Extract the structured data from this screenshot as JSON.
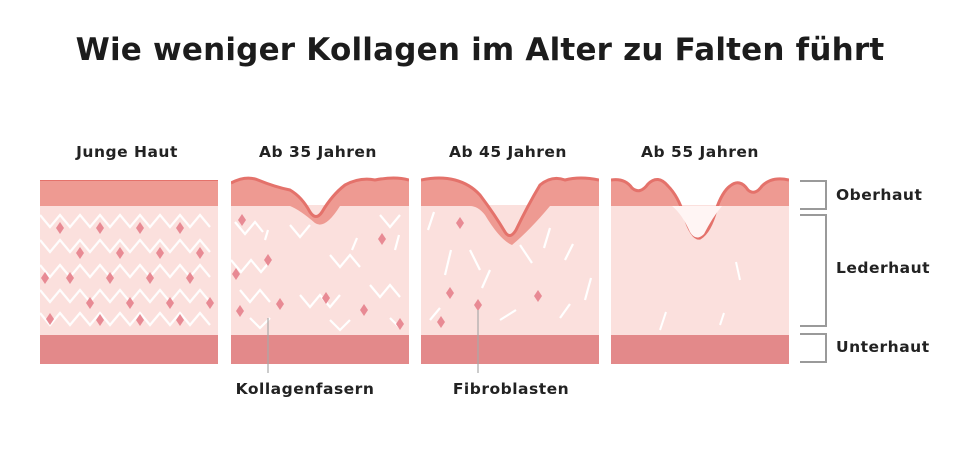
{
  "title": "Wie weniger Kollagen im Alter zu Falten führt",
  "stages": [
    {
      "label": "Junge Haut"
    },
    {
      "label": "Ab 35 Jahren"
    },
    {
      "label": "Ab 45 Jahren"
    },
    {
      "label": "Ab 55 Jahren"
    }
  ],
  "layers": {
    "epidermis": "Oberhaut",
    "dermis": "Lederhaut",
    "subcutis": "Unterhaut"
  },
  "callouts": {
    "collagen": "Kollagenfasern",
    "fibroblasts": "Fibroblasten"
  },
  "colors": {
    "epidermis": "#ee9a92",
    "epidermis_edge": "#e4726b",
    "dermis": "#fbe0dd",
    "subcutis": "#e3898a",
    "fiber": "#ffffff",
    "fibroblast": "#e88a94",
    "bracket": "#9a9a9a"
  }
}
